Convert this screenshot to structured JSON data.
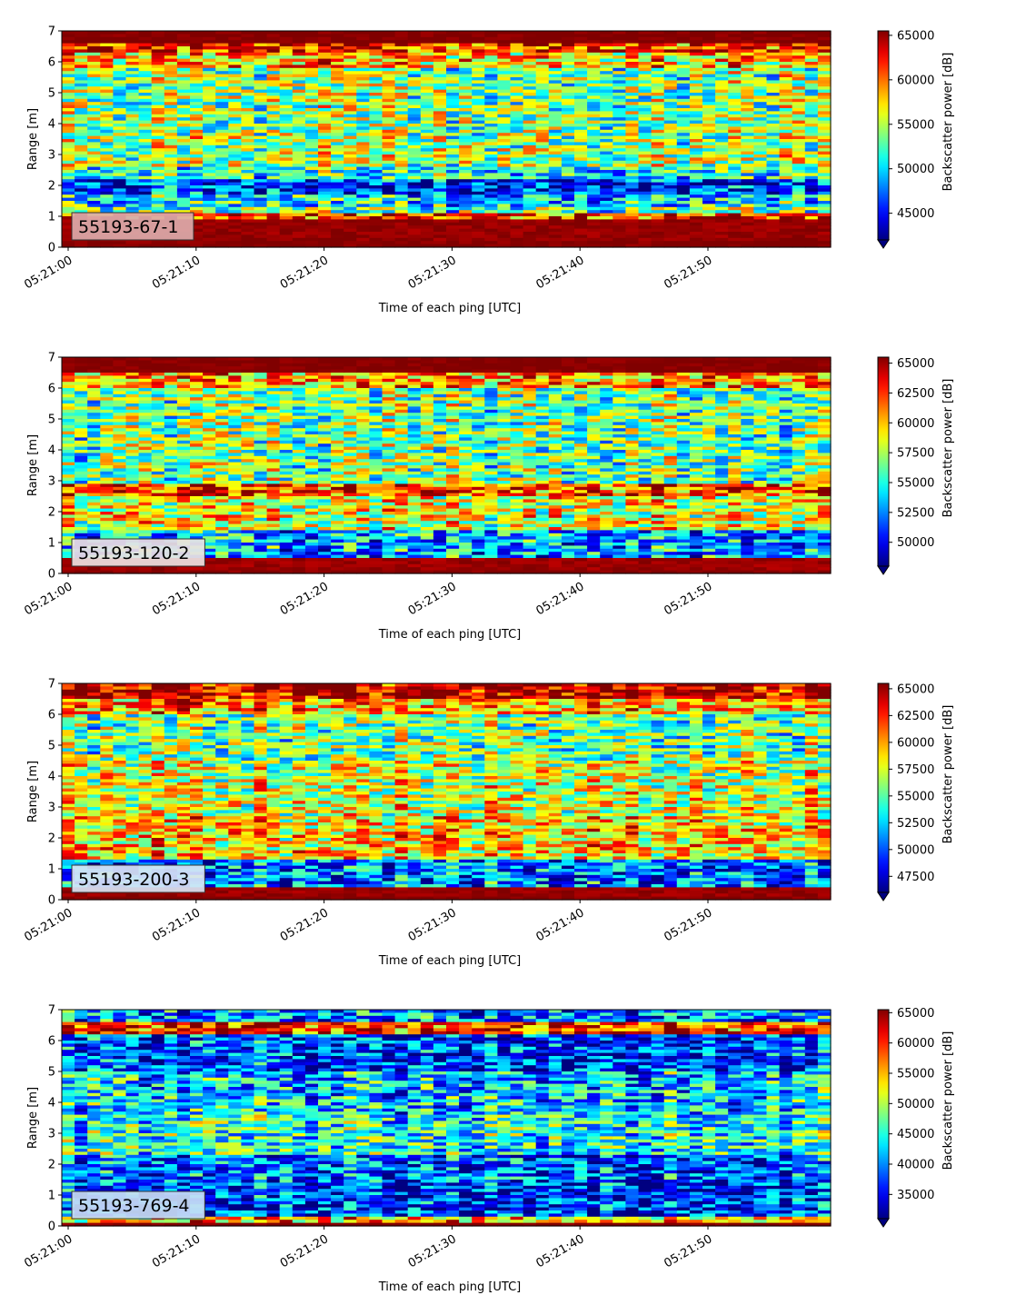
{
  "figure": {
    "x_tick_labels": [
      "05:21:00",
      "05:21:10",
      "05:21:20",
      "05:21:30",
      "05:21:40",
      "05:21:50"
    ],
    "xlabel": "Time of each ping [UTC]",
    "ylabel": "Range [m]",
    "colorbar_label": "Backscatter power [dB]",
    "colormap": "jet",
    "y_tick_labels": [
      "0",
      "1",
      "2",
      "3",
      "4",
      "5",
      "6",
      "7"
    ]
  },
  "chart_data": [
    {
      "type": "heatmap",
      "label": "55193-67-1",
      "label_box_color": "#dcaaaa",
      "xlabel": "Time of each ping [UTC]",
      "ylabel": "Range [m]",
      "colorbar_label": "Backscatter power [dB]",
      "x_range": [
        "05:21:00",
        "05:21:59"
      ],
      "ylim": [
        0,
        7
      ],
      "clim": [
        42000,
        65500
      ],
      "colorbar_ticks": [
        45000,
        50000,
        55000,
        60000,
        65000
      ],
      "colorbar_tick_labels": [
        "45000",
        "50000",
        "55000",
        "60000",
        "65000"
      ],
      "profile": [
        {
          "range": [
            0.0,
            0.25
          ],
          "value": 65500
        },
        {
          "range": [
            0.25,
            0.9
          ],
          "value": 65000
        },
        {
          "range": [
            0.9,
            1.1
          ],
          "value": 61000
        },
        {
          "range": [
            1.1,
            1.3
          ],
          "value": 53000
        },
        {
          "range": [
            1.3,
            1.75
          ],
          "value": 50500
        },
        {
          "range": [
            1.75,
            2.2
          ],
          "value": 46000
        },
        {
          "range": [
            2.2,
            2.6
          ],
          "value": 51500
        },
        {
          "range": [
            2.6,
            3.6
          ],
          "value": 54500
        },
        {
          "range": [
            3.6,
            5.8
          ],
          "value": 54000
        },
        {
          "range": [
            5.8,
            6.3
          ],
          "value": 58000
        },
        {
          "range": [
            6.3,
            6.6
          ],
          "value": 62000
        },
        {
          "range": [
            6.6,
            7.0
          ],
          "value": 65500
        }
      ]
    },
    {
      "type": "heatmap",
      "label": "55193-120-2",
      "label_box_color": "#ece2e2",
      "xlabel": "Time of each ping [UTC]",
      "ylabel": "Range [m]",
      "colorbar_label": "Backscatter power [dB]",
      "x_range": [
        "05:21:00",
        "05:21:59"
      ],
      "ylim": [
        0,
        7
      ],
      "clim": [
        48000,
        65500
      ],
      "colorbar_ticks": [
        50000,
        52500,
        55000,
        57500,
        60000,
        62500,
        65000
      ],
      "colorbar_tick_labels": [
        "50000",
        "52500",
        "55000",
        "57500",
        "60000",
        "62500",
        "65000"
      ],
      "profile": [
        {
          "range": [
            0.0,
            0.15
          ],
          "value": 65500
        },
        {
          "range": [
            0.15,
            0.5
          ],
          "value": 65000
        },
        {
          "range": [
            0.5,
            1.4
          ],
          "value": 53000
        },
        {
          "range": [
            1.4,
            2.5
          ],
          "value": 58500
        },
        {
          "range": [
            2.5,
            2.9
          ],
          "value": 62000
        },
        {
          "range": [
            2.9,
            6.0
          ],
          "value": 56500
        },
        {
          "range": [
            6.0,
            6.5
          ],
          "value": 60500
        },
        {
          "range": [
            6.5,
            7.0
          ],
          "value": 65500
        }
      ]
    },
    {
      "type": "heatmap",
      "label": "55193-200-3",
      "label_box_color": "#d8e4f4",
      "xlabel": "Time of each ping [UTC]",
      "ylabel": "Range [m]",
      "colorbar_label": "Backscatter power [dB]",
      "x_range": [
        "05:21:00",
        "05:21:59"
      ],
      "ylim": [
        0,
        7
      ],
      "clim": [
        46000,
        65500
      ],
      "colorbar_ticks": [
        47500,
        50000,
        52500,
        55000,
        57500,
        60000,
        62500,
        65000
      ],
      "colorbar_tick_labels": [
        "47500",
        "50000",
        "52500",
        "55000",
        "57500",
        "60000",
        "62500",
        "65000"
      ],
      "profile": [
        {
          "range": [
            0.0,
            0.15
          ],
          "value": 65500
        },
        {
          "range": [
            0.15,
            0.45
          ],
          "value": 65000
        },
        {
          "range": [
            0.45,
            1.3
          ],
          "value": 51000
        },
        {
          "range": [
            1.3,
            2.7
          ],
          "value": 59000
        },
        {
          "range": [
            2.7,
            4.5
          ],
          "value": 57500
        },
        {
          "range": [
            4.5,
            6.0
          ],
          "value": 55500
        },
        {
          "range": [
            6.0,
            6.5
          ],
          "value": 60000
        },
        {
          "range": [
            6.5,
            7.0
          ],
          "value": 64500
        }
      ]
    },
    {
      "type": "heatmap",
      "label": "55193-769-4",
      "label_box_color": "#c8dcf4",
      "xlabel": "Time of each ping [UTC]",
      "ylabel": "Range [m]",
      "colorbar_label": "Backscatter power [dB]",
      "x_range": [
        "05:21:00",
        "05:21:59"
      ],
      "ylim": [
        0,
        7
      ],
      "clim": [
        31000,
        65500
      ],
      "colorbar_ticks": [
        35000,
        40000,
        45000,
        50000,
        55000,
        60000,
        65000
      ],
      "colorbar_tick_labels": [
        "35000",
        "40000",
        "45000",
        "50000",
        "55000",
        "60000",
        "65000"
      ],
      "profile": [
        {
          "range": [
            0.0,
            0.15
          ],
          "value": 65500
        },
        {
          "range": [
            0.15,
            0.3
          ],
          "value": 55000
        },
        {
          "range": [
            0.3,
            1.3
          ],
          "value": 37000
        },
        {
          "range": [
            1.3,
            2.3
          ],
          "value": 38500
        },
        {
          "range": [
            2.3,
            3.6
          ],
          "value": 45000
        },
        {
          "range": [
            3.6,
            5.0
          ],
          "value": 42500
        },
        {
          "range": [
            5.0,
            6.2
          ],
          "value": 37500
        },
        {
          "range": [
            6.2,
            6.6
          ],
          "value": 60000
        },
        {
          "range": [
            6.6,
            7.0
          ],
          "value": 40000
        }
      ]
    }
  ]
}
